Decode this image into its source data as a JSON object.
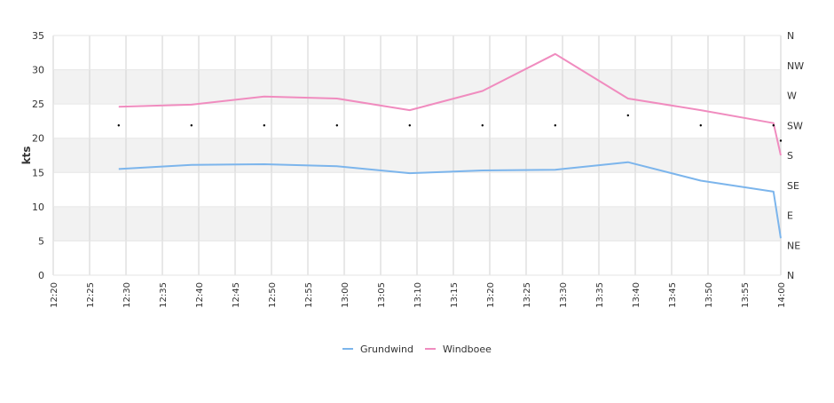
{
  "chart_data": {
    "type": "line",
    "ylabel": "kts",
    "ylim": [
      0,
      35
    ],
    "yticks": [
      0,
      5,
      10,
      15,
      20,
      25,
      30,
      35
    ],
    "y2ticks": [
      "N",
      "NE",
      "E",
      "SE",
      "S",
      "SW",
      "W",
      "NW",
      "N"
    ],
    "xticks": [
      "12:20",
      "12:25",
      "12:30",
      "12:35",
      "12:40",
      "12:45",
      "12:50",
      "12:55",
      "13:00",
      "13:05",
      "13:10",
      "13:15",
      "13:20",
      "13:25",
      "13:30",
      "13:35",
      "13:40",
      "13:45",
      "13:50",
      "13:55",
      "14:00"
    ],
    "grid": true,
    "legend_position": "bottom-center",
    "series": [
      {
        "name": "Grundwind",
        "color": "#7cb5ec",
        "points": [
          {
            "x": "12:29",
            "y": 15.5
          },
          {
            "x": "12:39",
            "y": 16.1
          },
          {
            "x": "12:49",
            "y": 16.2
          },
          {
            "x": "12:59",
            "y": 15.9
          },
          {
            "x": "13:09",
            "y": 14.9
          },
          {
            "x": "13:19",
            "y": 15.3
          },
          {
            "x": "13:29",
            "y": 15.4
          },
          {
            "x": "13:39",
            "y": 16.5
          },
          {
            "x": "13:49",
            "y": 13.8
          },
          {
            "x": "13:59",
            "y": 12.2
          },
          {
            "x": "14:00",
            "y": 5.4
          }
        ]
      },
      {
        "name": "Windboee",
        "color": "#f08cbf",
        "points": [
          {
            "x": "12:29",
            "y": 24.6
          },
          {
            "x": "12:39",
            "y": 24.9
          },
          {
            "x": "12:49",
            "y": 26.1
          },
          {
            "x": "12:59",
            "y": 25.8
          },
          {
            "x": "13:09",
            "y": 24.1
          },
          {
            "x": "13:19",
            "y": 26.9
          },
          {
            "x": "13:29",
            "y": 32.3
          },
          {
            "x": "13:39",
            "y": 25.8
          },
          {
            "x": "13:49",
            "y": 24.1
          },
          {
            "x": "13:59",
            "y": 22.2
          },
          {
            "x": "14:00",
            "y": 17.5
          }
        ]
      }
    ],
    "direction_markers": [
      {
        "x": "12:29",
        "dir_deg": 225
      },
      {
        "x": "12:39",
        "dir_deg": 225
      },
      {
        "x": "12:49",
        "dir_deg": 225
      },
      {
        "x": "12:59",
        "dir_deg": 225
      },
      {
        "x": "13:09",
        "dir_deg": 225
      },
      {
        "x": "13:19",
        "dir_deg": 225
      },
      {
        "x": "13:29",
        "dir_deg": 225
      },
      {
        "x": "13:39",
        "dir_deg": 240
      },
      {
        "x": "13:49",
        "dir_deg": 225
      },
      {
        "x": "13:59",
        "dir_deg": 225
      },
      {
        "x": "14:00",
        "dir_deg": 202
      }
    ]
  }
}
